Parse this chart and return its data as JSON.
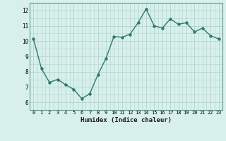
{
  "x": [
    0,
    1,
    2,
    3,
    4,
    5,
    6,
    7,
    8,
    9,
    10,
    11,
    12,
    13,
    14,
    15,
    16,
    17,
    18,
    19,
    20,
    21,
    22,
    23
  ],
  "y": [
    10.15,
    8.2,
    7.3,
    7.5,
    7.15,
    6.85,
    6.25,
    6.55,
    7.8,
    8.85,
    10.3,
    10.25,
    10.45,
    11.2,
    12.1,
    11.0,
    10.85,
    11.45,
    11.1,
    11.2,
    10.6,
    10.85,
    10.35,
    10.15
  ],
  "line_color": "#2d7a6e",
  "marker_color": "#2d7a6e",
  "bg_color": "#d8f0ec",
  "grid_color": "#b0d4cc",
  "xlabel": "Humidex (Indice chaleur)",
  "xlim": [
    -0.5,
    23.5
  ],
  "ylim": [
    5.5,
    12.5
  ],
  "yticks": [
    6,
    7,
    8,
    9,
    10,
    11,
    12
  ],
  "xticks": [
    0,
    1,
    2,
    3,
    4,
    5,
    6,
    7,
    8,
    9,
    10,
    11,
    12,
    13,
    14,
    15,
    16,
    17,
    18,
    19,
    20,
    21,
    22,
    23
  ]
}
